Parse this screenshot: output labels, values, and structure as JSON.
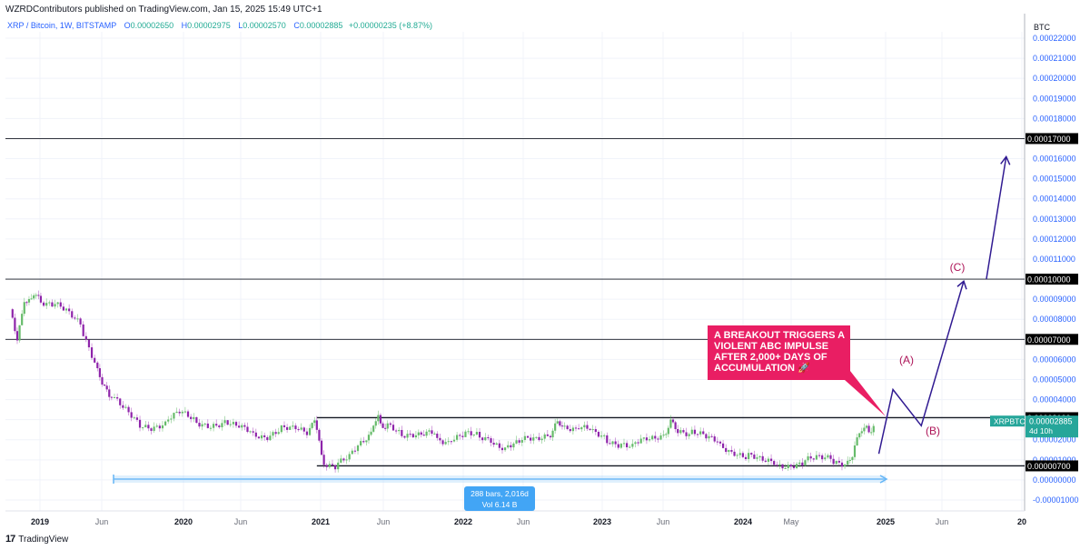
{
  "header": {
    "published": "WZRDContributors published on TradingView.com, Jan 15, 2025 15:49 UTC+1"
  },
  "legend": {
    "symbol": "XRP / Bitcoin, 1W, BITSTAMP",
    "open_label": "O",
    "open": "0.00002650",
    "high_label": "H",
    "high": "0.00002975",
    "low_label": "L",
    "low": "0.00002570",
    "close_label": "C",
    "close": "0.00002885",
    "change": "+0.00000235 (+8.87%)"
  },
  "footer": {
    "logo_text": "TradingView"
  },
  "chart_data": {
    "type": "candlestick",
    "symbol": "XRPBTC",
    "currency_label": "BTC",
    "x_ticks": [
      "2019",
      "Jun",
      "2020",
      "Jun",
      "2021",
      "Jun",
      "2022",
      "Jun",
      "2023",
      "Jun",
      "2024",
      "May",
      "2025",
      "Jun",
      "20"
    ],
    "y_ticks": [
      "0.00022000",
      "0.00021000",
      "0.00020000",
      "0.00019000",
      "0.00018000",
      "0.00017000",
      "0.00016000",
      "0.00015000",
      "0.00014000",
      "0.00013000",
      "0.00012000",
      "0.00011000",
      "0.00010000",
      "0.00009000",
      "0.00008000",
      "0.00007000",
      "0.00006000",
      "0.00005000",
      "0.00004000",
      "0.00003000",
      "0.00002000",
      "0.00001000",
      "0.00000000",
      "-0.00001000"
    ],
    "ylim": [
      -1.2e-05,
      0.000225
    ],
    "horizontal_levels": [
      {
        "value": "0.00017000",
        "label": "0.00017000"
      },
      {
        "value": "0.00010000",
        "label": "0.00010000"
      },
      {
        "value": "0.00007000",
        "label": "0.00007000"
      },
      {
        "value": "0.00003100",
        "label": "0.00003100"
      },
      {
        "value": "0.00000700",
        "label": "0.00000700"
      }
    ],
    "price_tag": {
      "symbol": "XRPBTC",
      "price": "0.00002885",
      "countdown": "4d 10h"
    },
    "range_box": {
      "bars": "288 bars, 2,016d",
      "volume": "Vol 6.14 B"
    },
    "annotation": {
      "lines": [
        "A BREAKOUT TRIGGERS A",
        "VIOLENT ABC IMPULSE",
        "AFTER 2,000+  DAYS OF",
        "ACCUMULATION 🚀"
      ]
    },
    "wave_labels": [
      "(A)",
      "(B)",
      "(C)"
    ],
    "price_path": [
      [
        2018.9,
        8.5e-05
      ],
      [
        2018.95,
        7e-05
      ],
      [
        2019.0,
        8.8e-05
      ],
      [
        2019.05,
        9.2e-05
      ],
      [
        2019.1,
        9e-05
      ],
      [
        2019.2,
        8.8e-05
      ],
      [
        2019.3,
        8.3e-05
      ],
      [
        2019.4,
        7.7e-05
      ],
      [
        2019.5,
        6e-05
      ],
      [
        2019.55,
        4.8e-05
      ],
      [
        2019.6,
        4.3e-05
      ],
      [
        2019.7,
        3.5e-05
      ],
      [
        2019.8,
        2.8e-05
      ],
      [
        2019.9,
        2.7e-05
      ],
      [
        2020.0,
        2.9e-05
      ],
      [
        2020.1,
        3.3e-05
      ],
      [
        2020.2,
        2.9e-05
      ],
      [
        2020.3,
        2.8e-05
      ],
      [
        2020.4,
        2.9e-05
      ],
      [
        2020.5,
        2.6e-05
      ],
      [
        2020.6,
        2.3e-05
      ],
      [
        2020.7,
        2.2e-05
      ],
      [
        2020.8,
        2.6e-05
      ],
      [
        2020.9,
        2.5e-05
      ],
      [
        2021.0,
        2.2e-05
      ],
      [
        2021.05,
        3.2e-05
      ],
      [
        2021.1,
        1e-05
      ],
      [
        2021.2,
        8e-06
      ],
      [
        2021.3,
        1.1e-05
      ],
      [
        2021.4,
        1.8e-05
      ],
      [
        2021.45,
        2.5e-05
      ],
      [
        2021.5,
        3e-05
      ],
      [
        2021.55,
        2.7e-05
      ],
      [
        2021.65,
        2.3e-05
      ],
      [
        2021.75,
        2.4e-05
      ],
      [
        2021.9,
        2.2e-05
      ],
      [
        2022.0,
        2e-05
      ],
      [
        2022.1,
        2.2e-05
      ],
      [
        2022.2,
        2.1e-05
      ],
      [
        2022.3,
        2e-05
      ],
      [
        2022.4,
        1.7e-05
      ],
      [
        2022.5,
        1.9e-05
      ],
      [
        2022.6,
        1.9e-05
      ],
      [
        2022.7,
        2.2e-05
      ],
      [
        2022.75,
        2.8e-05
      ],
      [
        2022.8,
        2.7e-05
      ],
      [
        2022.9,
        2.5e-05
      ],
      [
        2023.0,
        2.4e-05
      ],
      [
        2023.1,
        2.1e-05
      ],
      [
        2023.2,
        1.9e-05
      ],
      [
        2023.3,
        1.7e-05
      ],
      [
        2023.4,
        1.9e-05
      ],
      [
        2023.5,
        2.1e-05
      ],
      [
        2023.55,
        2.8e-05
      ],
      [
        2023.6,
        2.6e-05
      ],
      [
        2023.7,
        2.3e-05
      ],
      [
        2023.8,
        2.1e-05
      ],
      [
        2023.9,
        1.9e-05
      ],
      [
        2024.0,
        1.5e-05
      ],
      [
        2024.1,
        1.2e-05
      ],
      [
        2024.2,
        9e-06
      ],
      [
        2024.3,
        8e-06
      ],
      [
        2024.4,
        8e-06
      ],
      [
        2024.5,
        9e-06
      ],
      [
        2024.6,
        1e-05
      ],
      [
        2024.7,
        1e-05
      ],
      [
        2024.8,
        9e-06
      ],
      [
        2024.85,
        1.2e-05
      ],
      [
        2024.9,
        2.5e-05
      ],
      [
        2024.95,
        2.4e-05
      ],
      [
        2025.0,
        2.8e-05
      ]
    ],
    "projection": [
      [
        2025.02,
        1.3e-05
      ],
      [
        2025.12,
        4.5e-05
      ],
      [
        2025.32,
        2.7e-05
      ],
      [
        2025.62,
        9.9e-05
      ]
    ],
    "projection_extension": [
      [
        2025.78,
        0.0001
      ],
      [
        2025.92,
        0.000161
      ]
    ]
  }
}
